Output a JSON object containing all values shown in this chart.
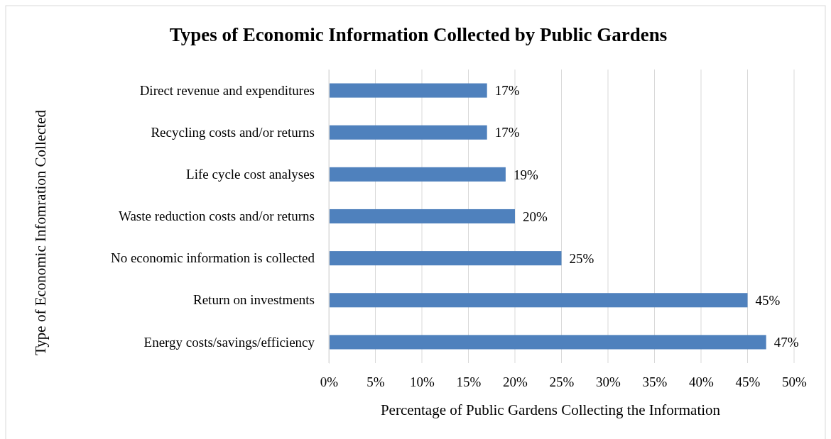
{
  "chart_data": {
    "type": "bar",
    "orientation": "horizontal",
    "title": "Types of Economic Information Collected by Public Gardens",
    "xlabel": "Percentage of Public Gardens Collecting the Information",
    "ylabel": "Type of Economic Infomration Collected",
    "categories": [
      "Direct revenue and expenditures",
      "Recycling costs and/or returns",
      "Life cycle cost analyses",
      "Waste reduction costs and/or returns",
      "No economic information is collected",
      "Return on investments",
      "Energy costs/savings/efficiency"
    ],
    "values": [
      17,
      17,
      19,
      20,
      25,
      45,
      47
    ],
    "value_labels": [
      "17%",
      "17%",
      "19%",
      "20%",
      "25%",
      "45%",
      "47%"
    ],
    "color": "#4f81bd",
    "xlim": [
      0,
      50
    ],
    "xticks": [
      {
        "value": 0,
        "label": "0%"
      },
      {
        "value": 5,
        "label": "5%"
      },
      {
        "value": 10,
        "label": "10%"
      },
      {
        "value": 15,
        "label": "15%"
      },
      {
        "value": 20,
        "label": "20%"
      },
      {
        "value": 25,
        "label": "25%"
      },
      {
        "value": 30,
        "label": "30%"
      },
      {
        "value": 35,
        "label": "35%"
      },
      {
        "value": 40,
        "label": "40%"
      },
      {
        "value": 45,
        "label": "45%"
      },
      {
        "value": 50,
        "label": "50%"
      }
    ],
    "grid": "x"
  }
}
